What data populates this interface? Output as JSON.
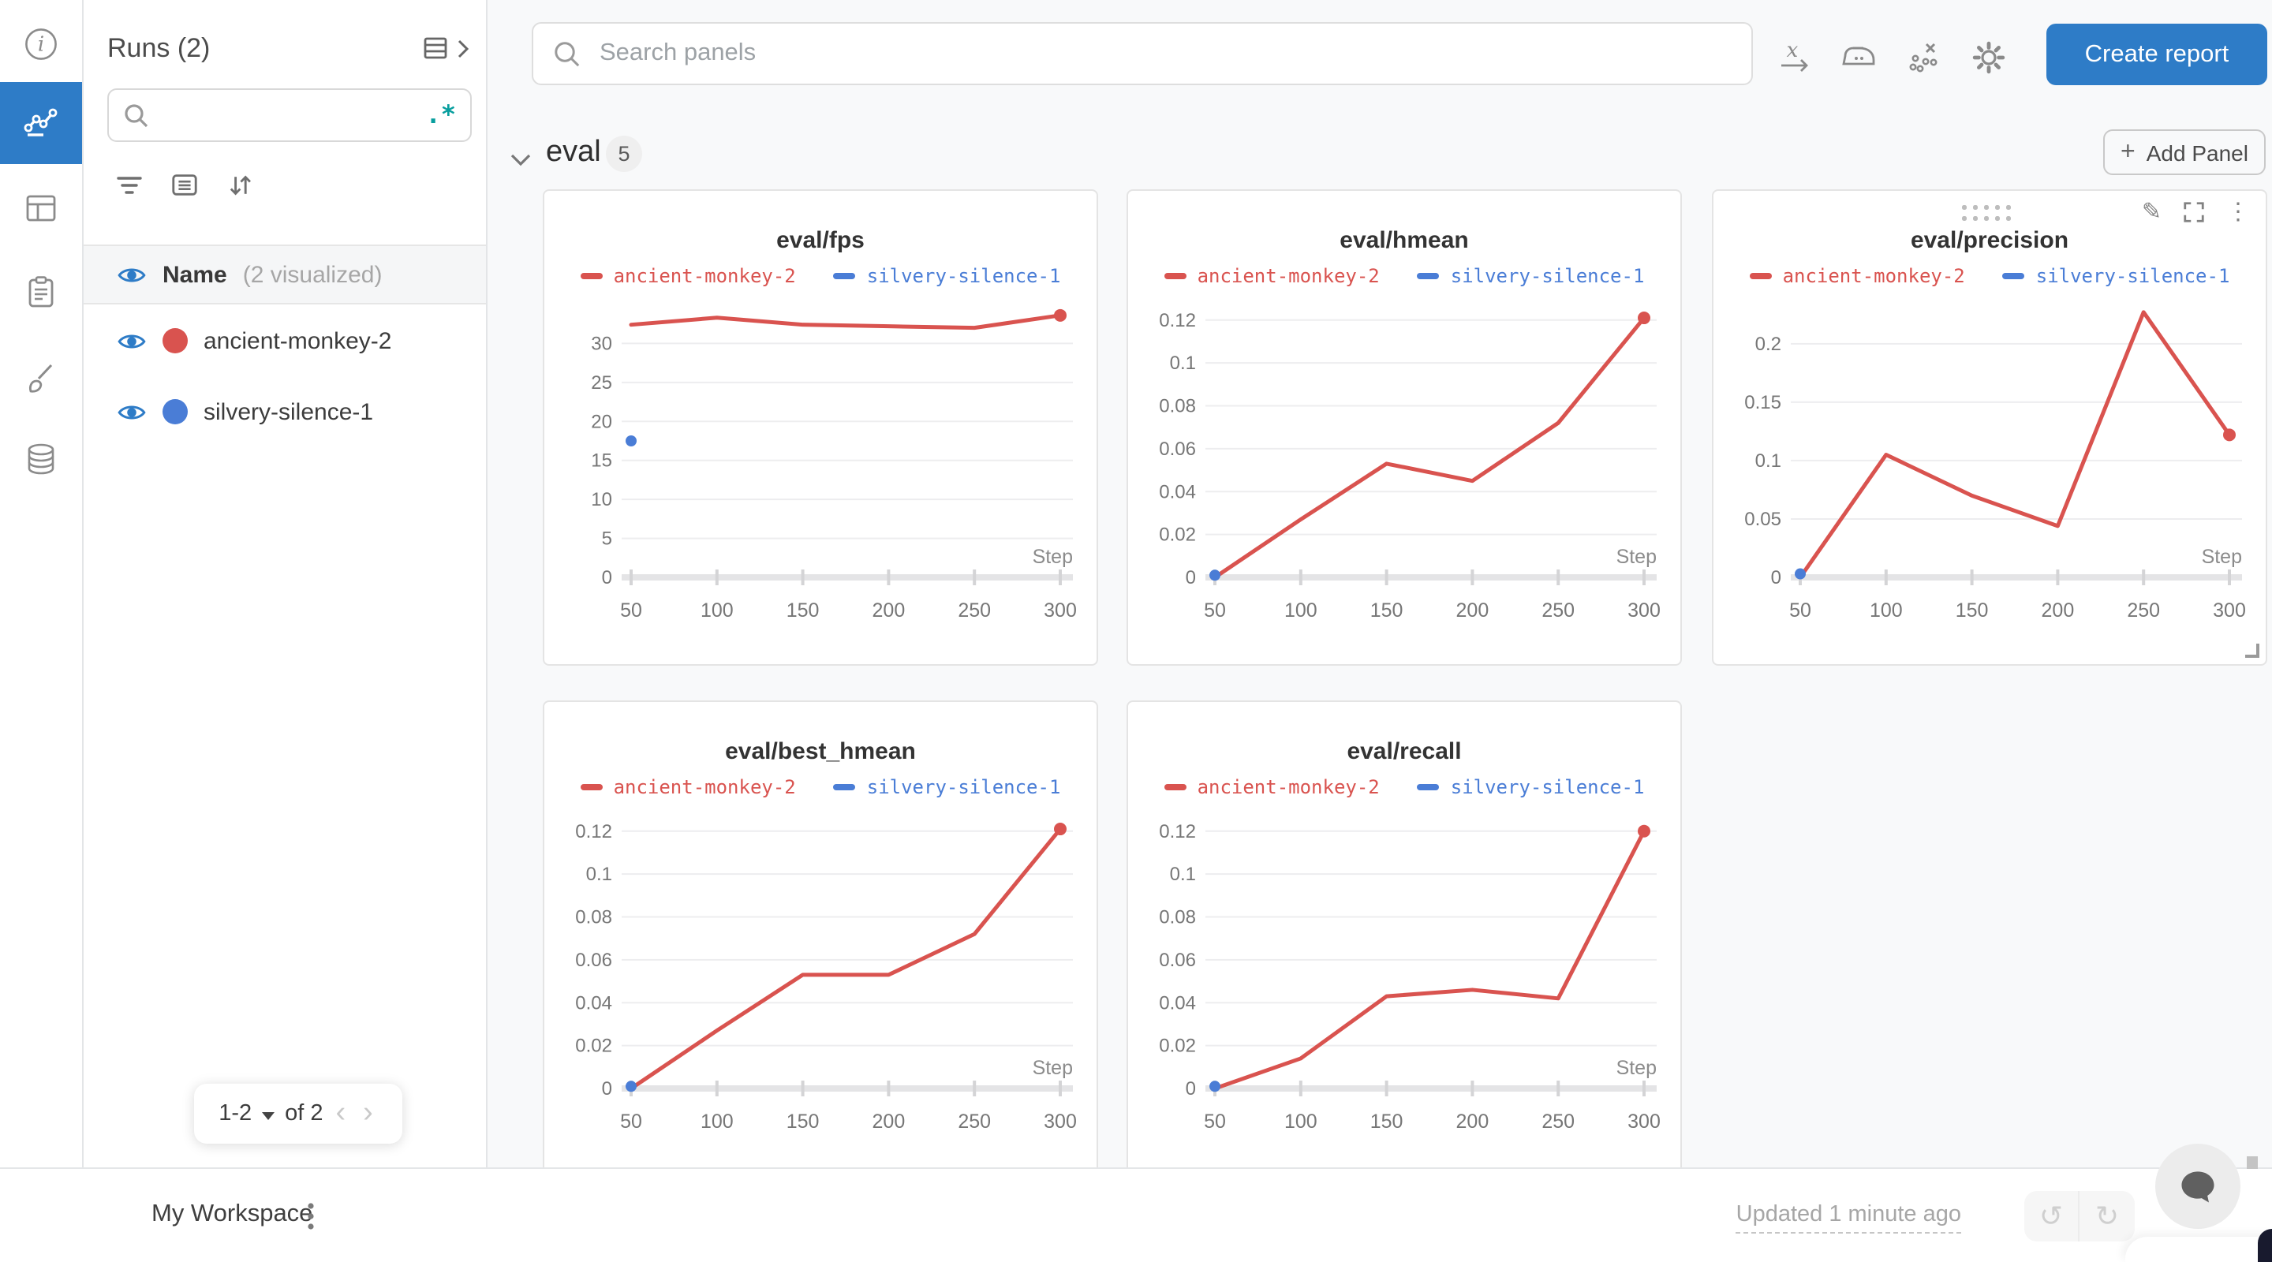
{
  "topbar": {
    "search_placeholder": "Search panels",
    "create_report_label": "Create report"
  },
  "section": {
    "title": "eval",
    "badge": "5",
    "add_panel_label": "Add Panel"
  },
  "sidebar": {
    "title": "Runs (2)",
    "search_placeholder": "",
    "header": {
      "label": "Name",
      "sublabel": "(2 visualized)"
    },
    "runs": [
      {
        "name": "ancient-monkey-2",
        "color": "#d9534f"
      },
      {
        "name": "silvery-silence-1",
        "color": "#4a7dd6"
      }
    ],
    "pagination": {
      "range": "1-2",
      "total": "of 2"
    }
  },
  "footer": {
    "workspace_label": "My Workspace",
    "updated_label": "Updated 1 minute ago"
  },
  "icons": {
    "plus": "+",
    "regex": ".*",
    "kebab": "⋮",
    "chevron_left": "‹",
    "chevron_right": "›",
    "undo": "↺",
    "redo": "↻",
    "pencil": "✎"
  },
  "colors": {
    "accent_blue": "#2e7cc7",
    "run_red": "#d9534f",
    "run_blue": "#4a7dd6",
    "regex_teal": "#089e9e"
  },
  "chart_data": [
    {
      "type": "line",
      "title": "eval/fps",
      "xlabel": "Step",
      "x": [
        50,
        100,
        150,
        200,
        250,
        300
      ],
      "ymax": 35.2,
      "yticks": [
        {
          "v": 0,
          "label": "0"
        },
        {
          "v": 5,
          "label": "5"
        },
        {
          "v": 10,
          "label": "10"
        },
        {
          "v": 15,
          "label": "15"
        },
        {
          "v": 20,
          "label": "20"
        },
        {
          "v": 25,
          "label": "25"
        },
        {
          "v": 30,
          "label": "30"
        }
      ],
      "series": [
        {
          "name": "ancient-monkey-2",
          "color": "#d9534f",
          "x": [
            50,
            100,
            150,
            200,
            250,
            300
          ],
          "y": [
            32.4,
            33.3,
            32.4,
            32.2,
            32.0,
            33.6
          ]
        },
        {
          "name": "silvery-silence-1",
          "color": "#4a7dd6",
          "x": [
            50
          ],
          "y": [
            17.5
          ]
        }
      ],
      "hovered": false
    },
    {
      "type": "line",
      "title": "eval/hmean",
      "xlabel": "Step",
      "x": [
        50,
        100,
        150,
        200,
        250,
        300
      ],
      "ymax": 0.128,
      "yticks": [
        {
          "v": 0,
          "label": "0"
        },
        {
          "v": 0.02,
          "label": "0.02"
        },
        {
          "v": 0.04,
          "label": "0.04"
        },
        {
          "v": 0.06,
          "label": "0.06"
        },
        {
          "v": 0.08,
          "label": "0.08"
        },
        {
          "v": 0.1,
          "label": "0.1"
        },
        {
          "v": 0.12,
          "label": "0.12"
        }
      ],
      "series": [
        {
          "name": "ancient-monkey-2",
          "color": "#d9534f",
          "x": [
            50,
            100,
            150,
            200,
            250,
            300
          ],
          "y": [
            0.0,
            0.027,
            0.053,
            0.045,
            0.072,
            0.121
          ]
        },
        {
          "name": "silvery-silence-1",
          "color": "#4a7dd6",
          "x": [
            50
          ],
          "y": [
            0.001
          ]
        }
      ],
      "hovered": false
    },
    {
      "type": "line",
      "title": "eval/precision",
      "xlabel": "Step",
      "x": [
        50,
        100,
        150,
        200,
        250,
        300
      ],
      "ymax": 0.235,
      "yticks": [
        {
          "v": 0,
          "label": "0"
        },
        {
          "v": 0.05,
          "label": "0.05"
        },
        {
          "v": 0.1,
          "label": "0.1"
        },
        {
          "v": 0.15,
          "label": "0.15"
        },
        {
          "v": 0.2,
          "label": "0.2"
        }
      ],
      "series": [
        {
          "name": "ancient-monkey-2",
          "color": "#d9534f",
          "x": [
            50,
            100,
            150,
            200,
            250,
            300
          ],
          "y": [
            0.0,
            0.105,
            0.07,
            0.044,
            0.227,
            0.122
          ]
        },
        {
          "name": "silvery-silence-1",
          "color": "#4a7dd6",
          "x": [
            50
          ],
          "y": [
            0.003
          ]
        }
      ],
      "hovered": true
    },
    {
      "type": "line",
      "title": "eval/best_hmean",
      "xlabel": "Step",
      "x": [
        50,
        100,
        150,
        200,
        250,
        300
      ],
      "ymax": 0.128,
      "yticks": [
        {
          "v": 0,
          "label": "0"
        },
        {
          "v": 0.02,
          "label": "0.02"
        },
        {
          "v": 0.04,
          "label": "0.04"
        },
        {
          "v": 0.06,
          "label": "0.06"
        },
        {
          "v": 0.08,
          "label": "0.08"
        },
        {
          "v": 0.1,
          "label": "0.1"
        },
        {
          "v": 0.12,
          "label": "0.12"
        }
      ],
      "series": [
        {
          "name": "ancient-monkey-2",
          "color": "#d9534f",
          "x": [
            50,
            100,
            150,
            200,
            250,
            300
          ],
          "y": [
            0.0,
            0.027,
            0.053,
            0.053,
            0.072,
            0.121
          ]
        },
        {
          "name": "silvery-silence-1",
          "color": "#4a7dd6",
          "x": [
            50
          ],
          "y": [
            0.001
          ]
        }
      ],
      "hovered": false
    },
    {
      "type": "line",
      "title": "eval/recall",
      "xlabel": "Step",
      "x": [
        50,
        100,
        150,
        200,
        250,
        300
      ],
      "ymax": 0.128,
      "yticks": [
        {
          "v": 0,
          "label": "0"
        },
        {
          "v": 0.02,
          "label": "0.02"
        },
        {
          "v": 0.04,
          "label": "0.04"
        },
        {
          "v": 0.06,
          "label": "0.06"
        },
        {
          "v": 0.08,
          "label": "0.08"
        },
        {
          "v": 0.1,
          "label": "0.1"
        },
        {
          "v": 0.12,
          "label": "0.12"
        }
      ],
      "series": [
        {
          "name": "ancient-monkey-2",
          "color": "#d9534f",
          "x": [
            50,
            100,
            150,
            200,
            250,
            300
          ],
          "y": [
            0.0,
            0.014,
            0.043,
            0.046,
            0.042,
            0.12
          ]
        },
        {
          "name": "silvery-silence-1",
          "color": "#4a7dd6",
          "x": [
            50
          ],
          "y": [
            0.001
          ]
        }
      ],
      "hovered": false
    }
  ]
}
